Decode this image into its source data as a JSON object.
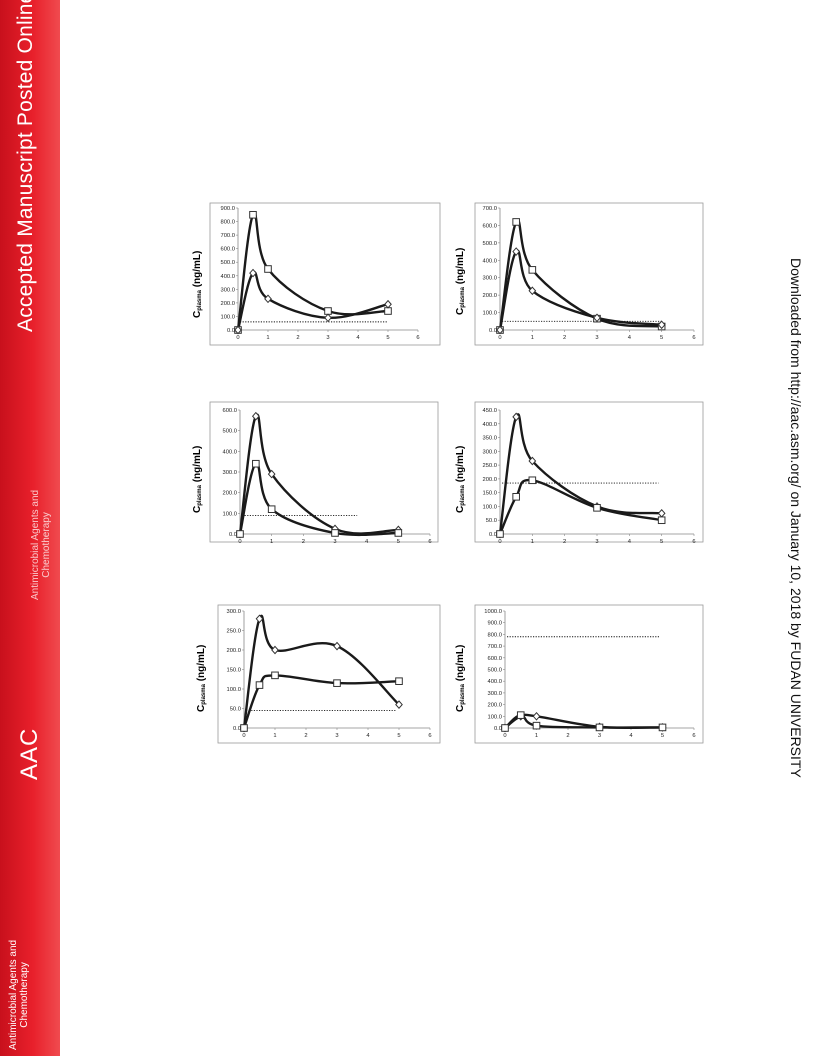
{
  "sidebar": {
    "title": "Accepted Manuscript Posted Online",
    "journal_name_top": "Antimicrobial Agents and",
    "journal_name_bottom": "Chemotherapy",
    "acronym": "AAC"
  },
  "download_note": "Downloaded from http://aac.asm.org/ on January 10, 2018 by FUDAN UNIVERSITY",
  "y_axis_label": {
    "main": "C",
    "sub": "plasma",
    "unit": "(ng/mL)"
  },
  "colors": {
    "sidebar": "#e01f28",
    "line": "#1a1a1a",
    "axis": "#888888"
  },
  "chart_data": [
    {
      "type": "line",
      "x_ticks": [
        0,
        1,
        2,
        3,
        4,
        5,
        6
      ],
      "ylim": [
        0,
        900
      ],
      "y_ticks": [
        "0.0",
        "100.0",
        "200.0",
        "300.0",
        "400.0",
        "500.0",
        "600.0",
        "700.0",
        "800.0",
        "900.0"
      ],
      "threshold": 60,
      "series": [
        {
          "marker": "square",
          "x": [
            0,
            0.5,
            1,
            3,
            5
          ],
          "y": [
            0,
            850,
            450,
            140,
            140
          ]
        },
        {
          "marker": "diamond",
          "x": [
            0,
            0.5,
            1,
            3,
            5
          ],
          "y": [
            0,
            420,
            230,
            90,
            190
          ]
        }
      ]
    },
    {
      "type": "line",
      "x_ticks": [
        0,
        1,
        2,
        3,
        4,
        5,
        6
      ],
      "ylim": [
        0,
        700
      ],
      "y_ticks": [
        "0.0",
        "100.0",
        "200.0",
        "300.0",
        "400.0",
        "500.0",
        "600.0",
        "700.0"
      ],
      "threshold": 50,
      "series": [
        {
          "marker": "square",
          "x": [
            0,
            0.5,
            1,
            3,
            5
          ],
          "y": [
            0,
            620,
            345,
            65,
            20
          ]
        },
        {
          "marker": "diamond",
          "x": [
            0,
            0.5,
            1,
            3,
            5
          ],
          "y": [
            0,
            450,
            225,
            70,
            30
          ]
        }
      ]
    },
    {
      "type": "line",
      "x_ticks": [
        0,
        1,
        2,
        3,
        4,
        5,
        6
      ],
      "ylim": [
        0,
        600
      ],
      "y_ticks": [
        "0.0",
        "100.0",
        "200.0",
        "300.0",
        "400.0",
        "500.0",
        "600.0"
      ],
      "threshold": 90,
      "series": [
        {
          "marker": "diamond",
          "x": [
            0,
            0.5,
            1,
            3,
            5
          ],
          "y": [
            0,
            570,
            290,
            25,
            20
          ]
        },
        {
          "marker": "square",
          "x": [
            0,
            0.5,
            1,
            3,
            5
          ],
          "y": [
            0,
            340,
            120,
            5,
            5
          ]
        }
      ]
    },
    {
      "type": "line",
      "x_ticks": [
        0,
        1,
        2,
        3,
        4,
        5,
        6
      ],
      "ylim": [
        0,
        450
      ],
      "y_ticks": [
        "0.0",
        "50.0",
        "100.0",
        "150.0",
        "200.0",
        "250.0",
        "300.0",
        "350.0",
        "400.0",
        "450.0"
      ],
      "threshold": 185,
      "series": [
        {
          "marker": "diamond",
          "x": [
            0,
            0.5,
            1,
            3,
            5
          ],
          "y": [
            0,
            425,
            265,
            100,
            75
          ]
        },
        {
          "marker": "square",
          "x": [
            0,
            0.5,
            1,
            3,
            5
          ],
          "y": [
            0,
            135,
            195,
            95,
            50
          ]
        }
      ]
    },
    {
      "type": "line",
      "x_ticks": [
        0,
        1,
        2,
        3,
        4,
        5,
        6
      ],
      "ylim": [
        0,
        300
      ],
      "y_ticks": [
        "0.0",
        "50.0",
        "100.0",
        "150.0",
        "200.0",
        "250.0",
        "300.0"
      ],
      "threshold": 45,
      "series": [
        {
          "marker": "diamond",
          "x": [
            0,
            0.5,
            1,
            3,
            5
          ],
          "y": [
            0,
            280,
            200,
            210,
            60
          ]
        },
        {
          "marker": "square",
          "x": [
            0,
            0.5,
            1,
            3,
            5
          ],
          "y": [
            0,
            110,
            135,
            115,
            120
          ]
        }
      ]
    },
    {
      "type": "line",
      "x_ticks": [
        0,
        1,
        2,
        3,
        4,
        5,
        6
      ],
      "ylim": [
        0,
        1000
      ],
      "y_ticks": [
        "0.0",
        "100.0",
        "200.0",
        "300.0",
        "400.0",
        "500.0",
        "600.0",
        "700.0",
        "800.0",
        "900.0",
        "1000.0"
      ],
      "threshold": 780,
      "series": [
        {
          "marker": "diamond",
          "x": [
            0,
            0.5,
            1,
            3,
            5
          ],
          "y": [
            0,
            100,
            100,
            10,
            5
          ]
        },
        {
          "marker": "square",
          "x": [
            0,
            0.5,
            1,
            3,
            5
          ],
          "y": [
            0,
            110,
            20,
            5,
            5
          ]
        }
      ]
    }
  ]
}
